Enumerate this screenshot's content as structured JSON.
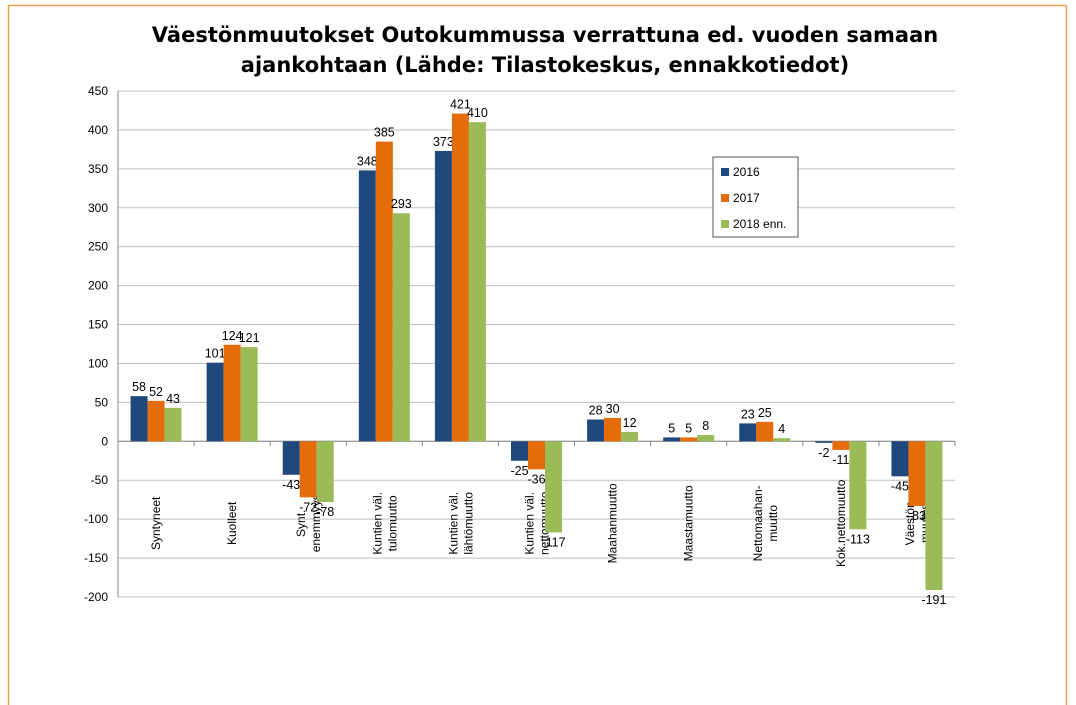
{
  "chart_data": {
    "type": "bar",
    "title": "Väestönmuutokset Outokummussa verrattuna ed. vuoden samaan\najankohtaan (Lähde: Tilastokeskus, ennakkotiedot)",
    "categories": [
      "Syntyneet",
      "Kuolleet",
      "Synt.\nenemmyys",
      "Kuntien väl.\ntulomuutto",
      "Kuntien väl.\nlähtömuutto",
      "Kuntien väl.\nnettomuutto",
      "Maahanmuutto",
      "Maastamuutto",
      "Nettomaahan-\nmuutto",
      "Kok.nettomuutto",
      "Väestön\nmuutos"
    ],
    "series": [
      {
        "name": "2016",
        "color": "#1f497d",
        "values": [
          58,
          101,
          -43,
          348,
          373,
          -25,
          28,
          5,
          23,
          -2,
          -45
        ]
      },
      {
        "name": "2017",
        "color": "#e46c0a",
        "values": [
          52,
          124,
          -72,
          385,
          421,
          -36,
          30,
          5,
          25,
          -11,
          -83
        ]
      },
      {
        "name": "2018 enn.",
        "color": "#9bbb59",
        "values": [
          43,
          121,
          -78,
          293,
          410,
          -117,
          12,
          8,
          4,
          -113,
          -191
        ]
      }
    ],
    "ylim": [
      -200,
      450
    ],
    "yticks": [
      -200,
      -150,
      -100,
      -50,
      0,
      50,
      100,
      150,
      200,
      250,
      300,
      350,
      400,
      450
    ],
    "grid": true,
    "legend": "upper right"
  }
}
